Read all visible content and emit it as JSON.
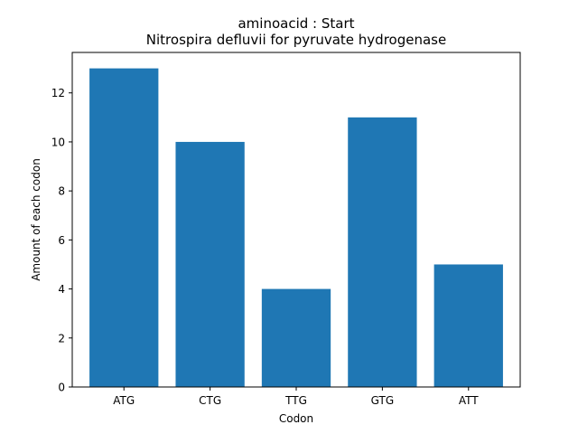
{
  "chart_data": {
    "type": "bar",
    "title": "aminoacid : Start",
    "subtitle": "Nitrospira defluvii for pyruvate hydrogenase",
    "xlabel": "Codon",
    "ylabel": "Amount of each codon",
    "categories": [
      "ATG",
      "CTG",
      "TTG",
      "GTG",
      "ATT"
    ],
    "values": [
      13,
      10,
      4,
      11,
      5
    ],
    "ylim": [
      0,
      13.65
    ],
    "yticks": [
      0,
      2,
      4,
      6,
      8,
      10,
      12
    ],
    "grid": false,
    "legend": "none",
    "bar_color": "#1f77b4"
  }
}
